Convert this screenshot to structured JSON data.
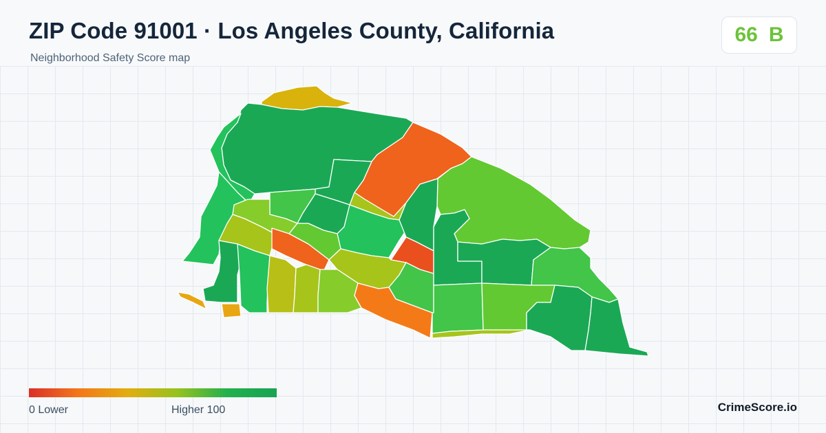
{
  "header": {
    "title": "ZIP Code 91001 · Los Angeles County, California",
    "subtitle": "Neighborhood Safety Score map"
  },
  "score_badge": {
    "score": "66",
    "grade": "B",
    "color": "#6cc33a"
  },
  "legend": {
    "low_label": "0  Lower",
    "high_label": "Higher  100",
    "colors": [
      "#d9302a",
      "#f4771a",
      "#e2ad10",
      "#95c21e",
      "#22b04e",
      "#19a354"
    ]
  },
  "brand": "CrimeScore.io",
  "palette": {
    "dark_green": "#1ba855",
    "green": "#23c25c",
    "mid_green": "#42c548",
    "light_green": "#62c932",
    "lime": "#86cc2b",
    "yellow_green": "#a7c41b",
    "olive_yellow": "#b8bf16",
    "mustard": "#d9b20c",
    "amber": "#e8a612",
    "orange": "#f47a18",
    "dark_orange": "#ef631c",
    "red_orange": "#e9501e"
  }
}
